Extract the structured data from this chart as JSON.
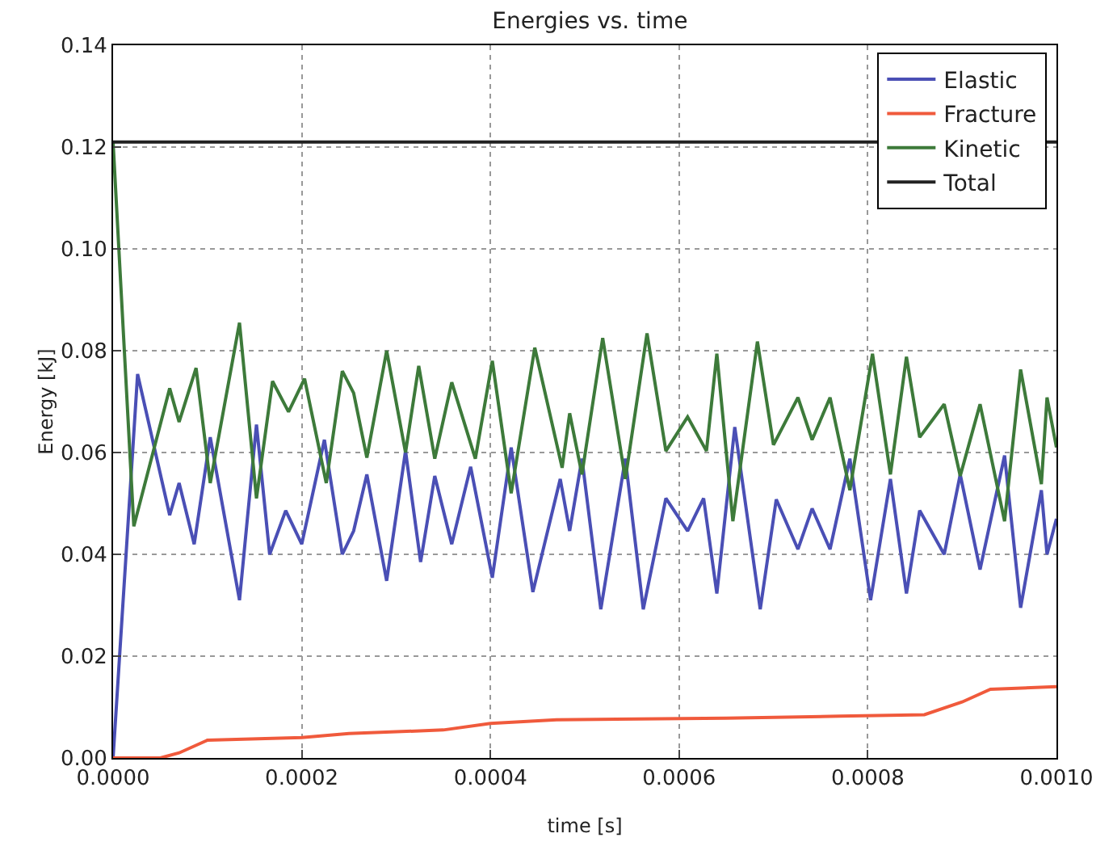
{
  "chart_data": {
    "type": "line",
    "title": "Energies vs. time",
    "xlabel": "time [s]",
    "ylabel": "Energy [kJ]",
    "xlim": [
      0,
      0.001
    ],
    "xticks": [
      {
        "value": 0,
        "label": "0.0000"
      },
      {
        "value": 0.0002,
        "label": "0.0002"
      },
      {
        "value": 0.0004,
        "label": "0.0004"
      },
      {
        "value": 0.0006,
        "label": "0.0006"
      },
      {
        "value": 0.0008,
        "label": "0.0008"
      },
      {
        "value": 0.001,
        "label": "0.0010"
      }
    ],
    "ylim": [
      0,
      0.14
    ],
    "yticks": [
      {
        "value": 0,
        "label": "0.00"
      },
      {
        "value": 0.02,
        "label": "0.02"
      },
      {
        "value": 0.04,
        "label": "0.04"
      },
      {
        "value": 0.06,
        "label": "0.06"
      },
      {
        "value": 0.08,
        "label": "0.08"
      },
      {
        "value": 0.1,
        "label": "0.10"
      },
      {
        "value": 0.12,
        "label": "0.12"
      },
      {
        "value": 0.14,
        "label": "0.14"
      }
    ],
    "grid": true,
    "legend": "top right",
    "line_style": "solid",
    "marker": "none",
    "series": [
      {
        "name": "Elastic",
        "color": "#4a4fb5",
        "x": [
          0,
          2.6e-05,
          6e-05,
          7e-05,
          8.6e-05,
          0.000103,
          0.000134,
          0.000152,
          0.000166,
          0.000183,
          0.0002,
          0.000224,
          0.000243,
          0.000255,
          0.000269,
          0.00029,
          0.00031,
          0.000326,
          0.000341,
          0.000359,
          0.000379,
          0.000402,
          0.000422,
          0.000445,
          0.000474,
          0.000484,
          0.000497,
          0.000517,
          0.000543,
          0.000562,
          0.000586,
          0.000609,
          0.000626,
          0.00064,
          0.000659,
          0.000686,
          0.000703,
          0.000726,
          0.000741,
          0.00076,
          0.000781,
          0.000803,
          0.000824,
          0.000841,
          0.000855,
          0.000881,
          0.000898,
          0.000919,
          0.000945,
          0.000962,
          0.000984,
          0.00099,
          0.001
        ],
        "values": [
          0,
          0.0754,
          0.0477,
          0.054,
          0.042,
          0.063,
          0.031,
          0.0655,
          0.04,
          0.0486,
          0.042,
          0.0625,
          0.04,
          0.0446,
          0.0557,
          0.0348,
          0.0603,
          0.0385,
          0.0554,
          0.042,
          0.0572,
          0.0354,
          0.061,
          0.0326,
          0.0548,
          0.0446,
          0.0588,
          0.0292,
          0.0588,
          0.0292,
          0.051,
          0.0446,
          0.051,
          0.0323,
          0.065,
          0.0292,
          0.0508,
          0.041,
          0.049,
          0.041,
          0.0588,
          0.031,
          0.0548,
          0.0323,
          0.0486,
          0.04,
          0.0557,
          0.037,
          0.0594,
          0.0295,
          0.0526,
          0.04,
          0.047
        ]
      },
      {
        "name": "Fracture",
        "color": "#f05a3c",
        "x": [
          0,
          5e-05,
          7e-05,
          0.0001,
          0.0002,
          0.00025,
          0.00035,
          0.0004,
          0.00047,
          0.00065,
          0.00077,
          0.00086,
          0.0009,
          0.00093,
          0.001
        ],
        "values": [
          0,
          0,
          0.001,
          0.0035,
          0.004,
          0.0048,
          0.0055,
          0.0068,
          0.0075,
          0.0078,
          0.0082,
          0.0085,
          0.011,
          0.0135,
          0.014
        ]
      },
      {
        "name": "Kinetic",
        "color": "#3d7a3a",
        "x": [
          0,
          2.2e-05,
          6e-05,
          7e-05,
          8.8e-05,
          0.000103,
          0.000134,
          0.000152,
          0.000169,
          0.000186,
          0.000203,
          0.000226,
          0.000243,
          0.000255,
          0.000269,
          0.00029,
          0.00031,
          0.000324,
          0.000341,
          0.000359,
          0.000384,
          0.000402,
          0.000422,
          0.000447,
          0.000476,
          0.000484,
          0.000497,
          0.000519,
          0.000543,
          0.000566,
          0.000586,
          0.000609,
          0.000629,
          0.00064,
          0.000657,
          0.000683,
          0.0007,
          0.000726,
          0.000741,
          0.00076,
          0.000781,
          0.000805,
          0.000824,
          0.000841,
          0.000855,
          0.000881,
          0.000898,
          0.000919,
          0.000945,
          0.000962,
          0.000984,
          0.00099,
          0.001
        ],
        "values": [
          0.121,
          0.0455,
          0.0726,
          0.066,
          0.0766,
          0.054,
          0.0855,
          0.051,
          0.074,
          0.068,
          0.0745,
          0.054,
          0.076,
          0.0717,
          0.059,
          0.08,
          0.06,
          0.077,
          0.0588,
          0.0738,
          0.0588,
          0.078,
          0.052,
          0.0806,
          0.057,
          0.0677,
          0.0557,
          0.0825,
          0.0548,
          0.0834,
          0.0603,
          0.067,
          0.0603,
          0.0794,
          0.0465,
          0.0818,
          0.0615,
          0.0708,
          0.0625,
          0.0708,
          0.0526,
          0.0794,
          0.0557,
          0.0788,
          0.063,
          0.0695,
          0.0554,
          0.0695,
          0.0465,
          0.0763,
          0.0538,
          0.0708,
          0.061
        ]
      },
      {
        "name": "Total",
        "color": "#222222",
        "x": [
          0,
          0.001
        ],
        "values": [
          0.121,
          0.121
        ]
      }
    ]
  }
}
